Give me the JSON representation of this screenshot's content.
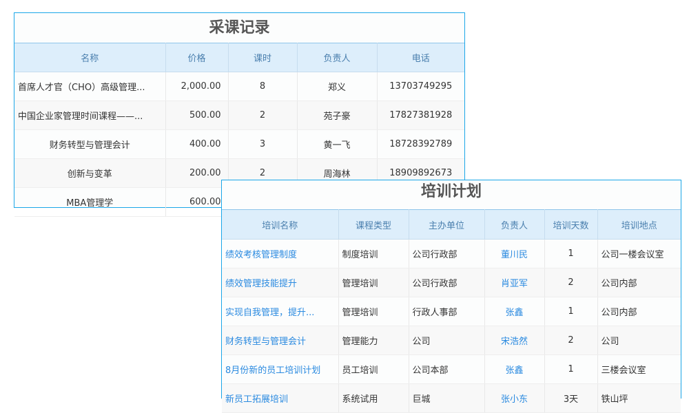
{
  "purchase": {
    "title": "采课记录",
    "headers": [
      "名称",
      "价格",
      "课时",
      "负责人",
      "电话"
    ],
    "rows": [
      [
        "首席人才官（CHO）高级管理...",
        "2,000.00",
        "8",
        "郑义",
        "13703749295"
      ],
      [
        "中国企业家管理时间课程——...",
        "500.00",
        "2",
        "苑子豪",
        "17827381928"
      ],
      [
        "财务转型与管理会计",
        "400.00",
        "3",
        "黄一飞",
        "18728392789"
      ],
      [
        "创新与变革",
        "200.00",
        "2",
        "周海林",
        "18909892673"
      ],
      [
        "MBA管理学",
        "600.00",
        "",
        "",
        ""
      ]
    ]
  },
  "plan": {
    "title": "培训计划",
    "headers": [
      "培训名称",
      "课程类型",
      "主办单位",
      "负责人",
      "培训天数",
      "培训地点"
    ],
    "rows": [
      [
        "绩效考核管理制度",
        "制度培训",
        "公司行政部",
        "董川民",
        "1",
        "公司一楼会议室"
      ],
      [
        "绩效管理技能提升",
        "管理培训",
        "公司行政部",
        "肖亚军",
        "2",
        "公司内部"
      ],
      [
        "实现自我管理，提升...",
        "管理培训",
        "行政人事部",
        "张鑫",
        "1",
        "公司内部"
      ],
      [
        "财务转型与管理会计",
        "管理能力",
        "公司",
        "宋浩然",
        "2",
        "公司"
      ],
      [
        "8月份新的员工培训计划",
        "员工培训",
        "公司本部",
        "张鑫",
        "1",
        "三楼会议室"
      ],
      [
        "新员工拓展培训",
        "系统试用",
        "巨城",
        "张小东",
        "3天",
        "铁山坪"
      ]
    ]
  },
  "colors": {
    "border": "#1aa6e8",
    "header_bg": "#ddeefb",
    "link": "#2a8ae0"
  }
}
